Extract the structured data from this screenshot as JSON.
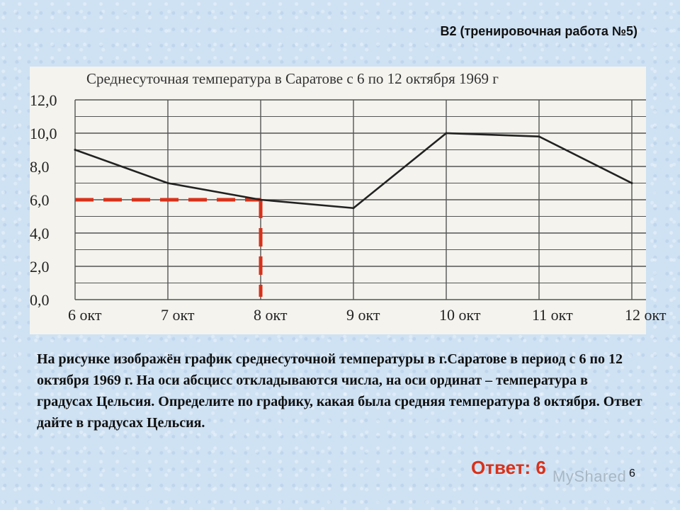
{
  "slide": {
    "title": "B2 (тренировочная работа №5)",
    "problem_text": "На рисунке изображён график среднесуточной температуры в г.Саратове в период с  6 по 12 октября 1969 г.  На оси абсцисс откладываются числа, на оси ординат – температура в градусах Цельсия. Определите по графику, какая была средняя температура 8 октября. Ответ дайте в градусах Цельсия.",
    "answer": "Ответ: 6",
    "page_number": "6",
    "watermark": "MyShared"
  },
  "chart_data": {
    "type": "line",
    "title": "Среднесуточная температура в Саратове с 6 по 12 октября 1969 г",
    "categories": [
      "6 окт",
      "7 окт",
      "8 окт",
      "9 окт",
      "10 окт",
      "11 окт",
      "12 окт"
    ],
    "yticks": [
      "0,0",
      "2,0",
      "4,0",
      "6,0",
      "8,0",
      "10,0",
      "12,0"
    ],
    "ylim": [
      0,
      12
    ],
    "values": [
      9.0,
      7.0,
      6.0,
      5.5,
      10.0,
      9.8,
      7.0
    ],
    "grid": true,
    "highlight": {
      "category": "8 окт",
      "value": 6.0,
      "color": "#d9311a"
    },
    "line_color": "#222222"
  }
}
